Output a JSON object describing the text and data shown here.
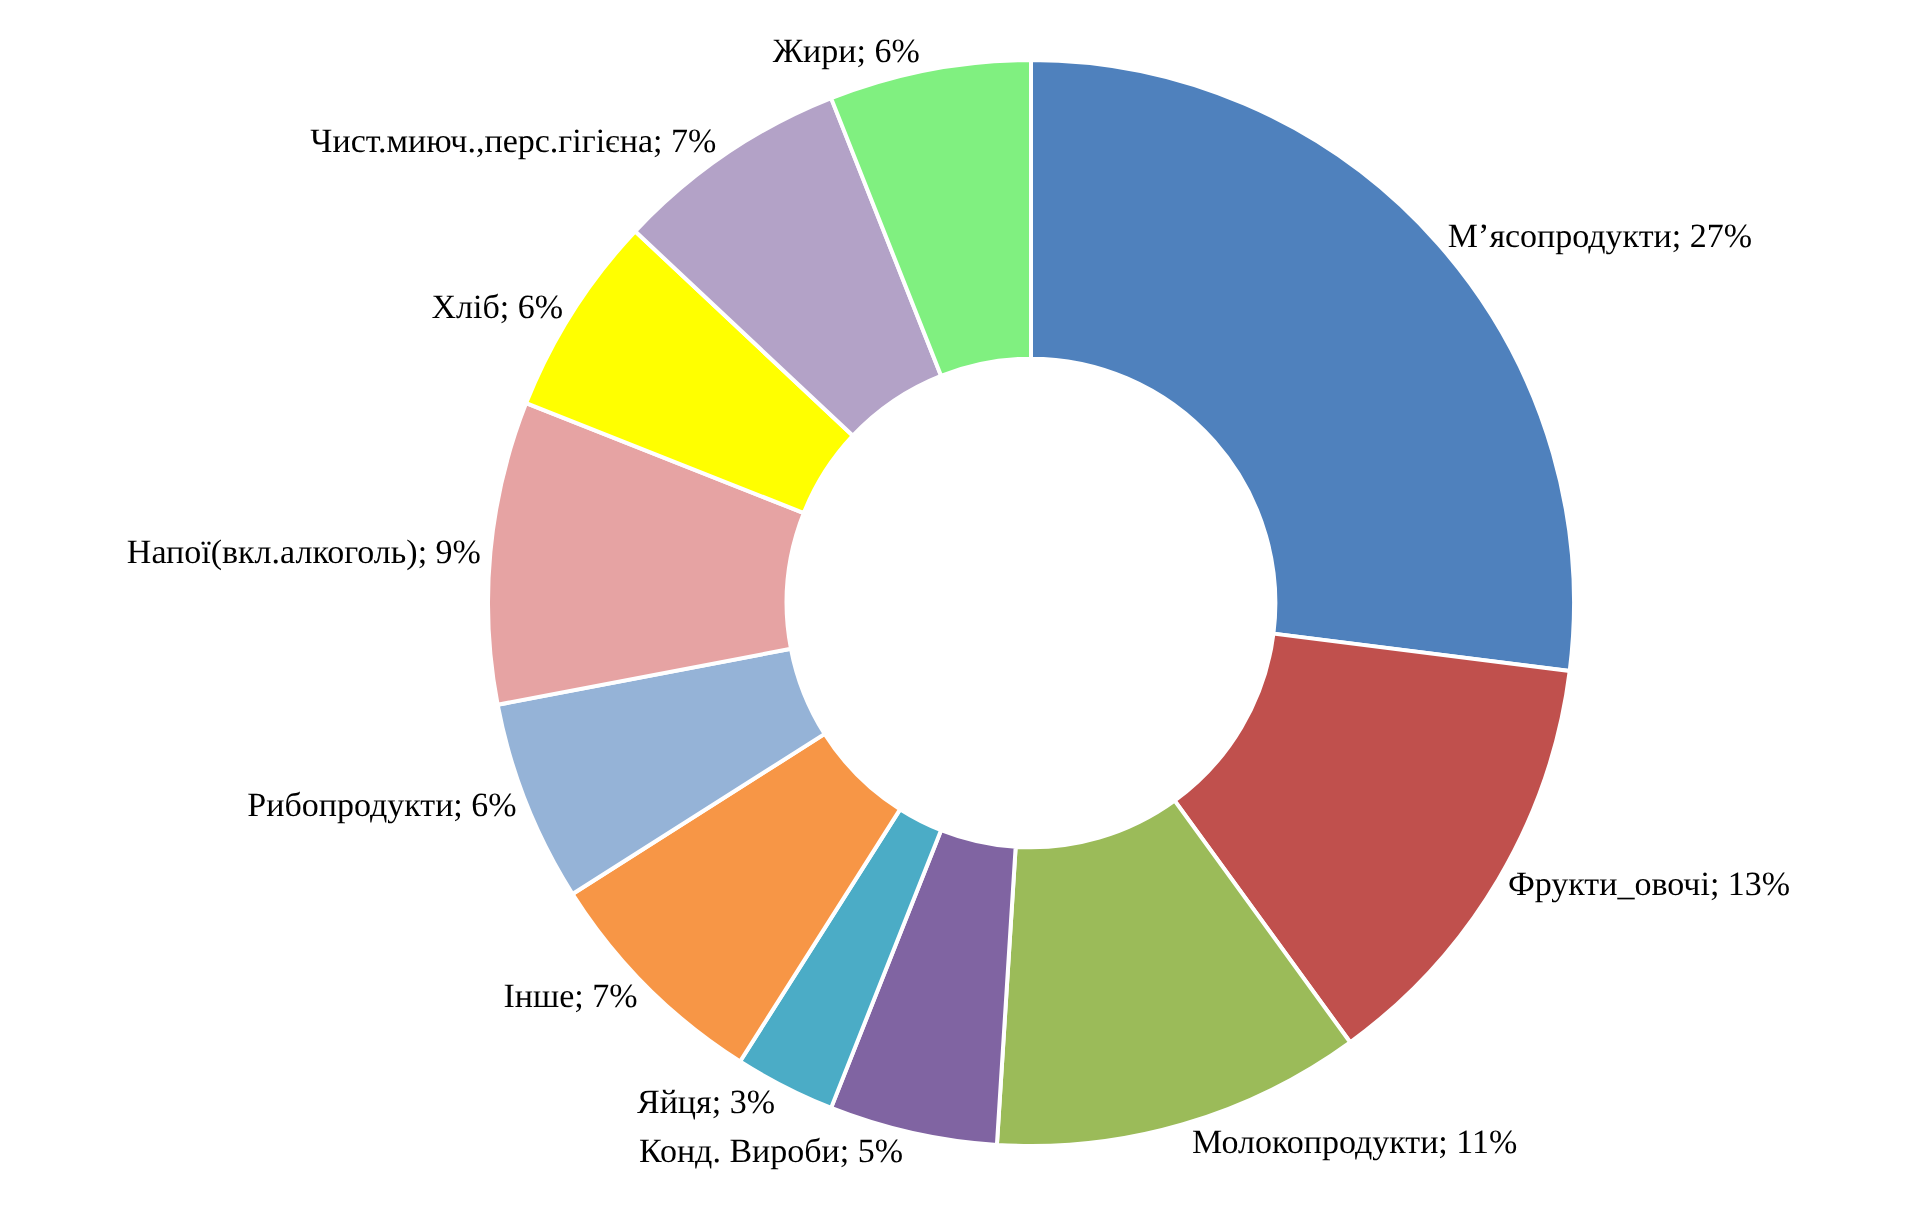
{
  "chart_data": {
    "type": "donut",
    "categories": [
      "М’ясопродукти",
      "Фрукти_овочі",
      "Молокопродукти",
      "Конд. Вироби",
      "Яйця",
      "Інше",
      "Рибопродукти",
      "Напої(вкл.алкоголь)",
      "Хліб",
      "Чист.миюч.,перс.гігієна",
      "Жири"
    ],
    "values": [
      27,
      13,
      11,
      5,
      3,
      7,
      6,
      9,
      6,
      7,
      6
    ],
    "value_labels": [
      "27%",
      "13%",
      "11%",
      "5%",
      "3%",
      "7%",
      "6%",
      "9%",
      "6%",
      "7%",
      "6%"
    ],
    "colors": [
      "#4f81bd",
      "#c0504d",
      "#9bbb59",
      "#8064a2",
      "#4bacc6",
      "#f79646",
      "#95b3d7",
      "#e6a3a3",
      "#ffff00",
      "#b3a2c7",
      "#80f080"
    ],
    "legend": false
  }
}
